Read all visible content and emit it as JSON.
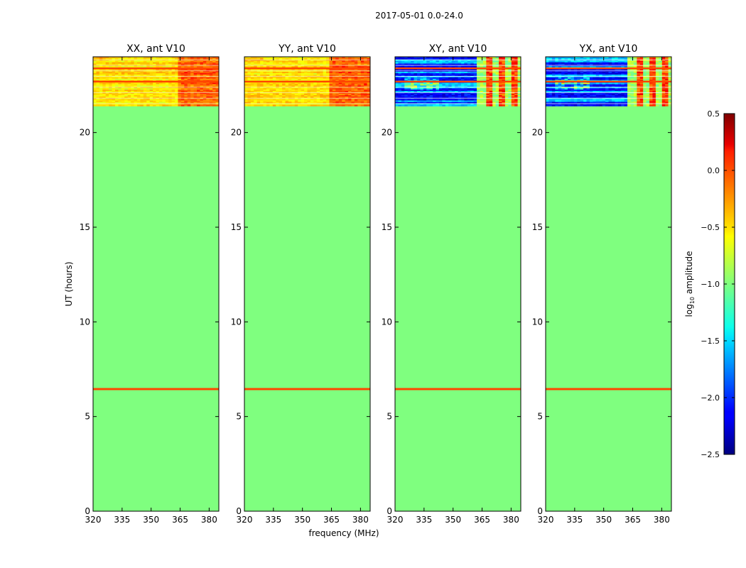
{
  "figure_title": "2017-05-01 0.0-24.0",
  "colors": {
    "background_fill": "#7fff7f",
    "flag_line": "#ff4500",
    "frame": "#000000"
  },
  "chart_data": {
    "type": "heatmap",
    "suptitle": "2017-05-01 0.0-24.0",
    "xlabel": "frequency (MHz)",
    "ylabel": "UT (hours)",
    "xlim": [
      320,
      385
    ],
    "ylim": [
      0,
      24
    ],
    "xticks": [
      320,
      335,
      350,
      365,
      380
    ],
    "yticks": [
      0,
      5,
      10,
      15,
      20
    ],
    "data_start_hour": 21.4,
    "constant_line_hour": 6.45,
    "panels": [
      {
        "title": "XX, ant V10",
        "polarization": "XX",
        "antenna": "V10"
      },
      {
        "title": "YY, ant V10",
        "polarization": "YY",
        "antenna": "V10"
      },
      {
        "title": "XY, ant V10",
        "polarization": "XY",
        "antenna": "V10"
      },
      {
        "title": "YX, ant V10",
        "polarization": "YX",
        "antenna": "V10"
      }
    ],
    "colorbar": {
      "label": "log10 amplitude",
      "label_main": "log",
      "label_sub": "10",
      "label_tail": " amplitude",
      "min": -2.5,
      "max": 0.5,
      "ticks": [
        0.5,
        0.0,
        -0.5,
        -1.0,
        -1.5,
        -2.0,
        -2.5
      ],
      "tick_labels": [
        "0.5",
        "0.0",
        "−0.5",
        "−1.0",
        "−1.5",
        "−2.0",
        "−2.5"
      ],
      "colormap": "jet"
    }
  }
}
